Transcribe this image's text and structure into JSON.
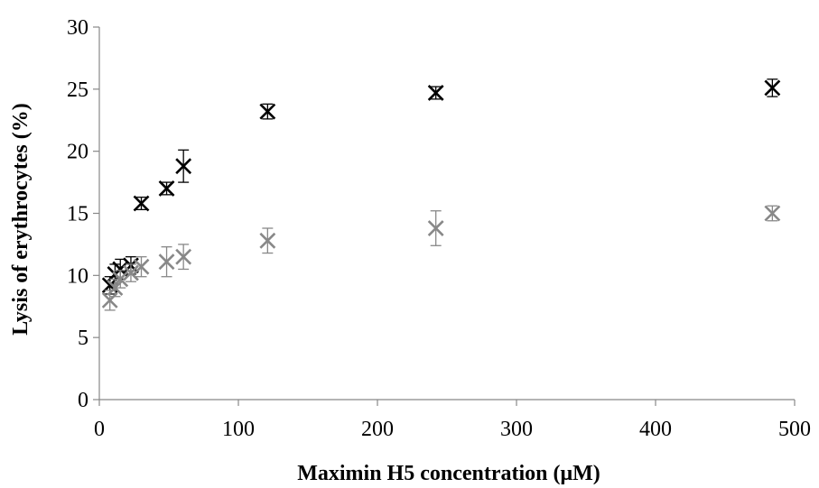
{
  "chart_data": {
    "type": "scatter",
    "title": "",
    "xlabel": "Maximin H5 concentration (μM)",
    "ylabel": "Lysis of erythrocytes (%)",
    "xlim": [
      0,
      500
    ],
    "ylim": [
      0,
      30
    ],
    "x_ticks": [
      0,
      100,
      200,
      300,
      400,
      500
    ],
    "y_ticks": [
      0,
      5,
      10,
      15,
      20,
      25,
      30
    ],
    "grid": false,
    "legend": "none",
    "marker": "x",
    "series": [
      {
        "color": "#000000",
        "points": [
          {
            "x": 7.6,
            "y": 9.2,
            "err": 0.7
          },
          {
            "x": 11.3,
            "y": 10.1,
            "err": 0.8
          },
          {
            "x": 15.1,
            "y": 10.5,
            "err": 0.8
          },
          {
            "x": 22.7,
            "y": 10.8,
            "err": 0.7
          },
          {
            "x": 30.2,
            "y": 15.8,
            "err": 0.5
          },
          {
            "x": 48.4,
            "y": 17.0,
            "err": 0.5
          },
          {
            "x": 60.5,
            "y": 18.8,
            "err": 1.3
          },
          {
            "x": 121.0,
            "y": 23.2,
            "err": 0.6
          },
          {
            "x": 242.0,
            "y": 24.7,
            "err": 0.5
          },
          {
            "x": 484.0,
            "y": 25.1,
            "err": 0.7
          }
        ]
      },
      {
        "color": "#888888",
        "points": [
          {
            "x": 7.6,
            "y": 8.0,
            "err": 0.8
          },
          {
            "x": 11.3,
            "y": 9.0,
            "err": 0.7
          },
          {
            "x": 15.1,
            "y": 9.7,
            "err": 0.7
          },
          {
            "x": 22.7,
            "y": 10.2,
            "err": 0.7
          },
          {
            "x": 30.2,
            "y": 10.7,
            "err": 0.8
          },
          {
            "x": 48.4,
            "y": 11.1,
            "err": 1.2
          },
          {
            "x": 60.5,
            "y": 11.5,
            "err": 1.0
          },
          {
            "x": 121.0,
            "y": 12.8,
            "err": 1.0
          },
          {
            "x": 242.0,
            "y": 13.8,
            "err": 1.4
          },
          {
            "x": 484.0,
            "y": 15.0,
            "err": 0.6
          }
        ]
      }
    ]
  }
}
